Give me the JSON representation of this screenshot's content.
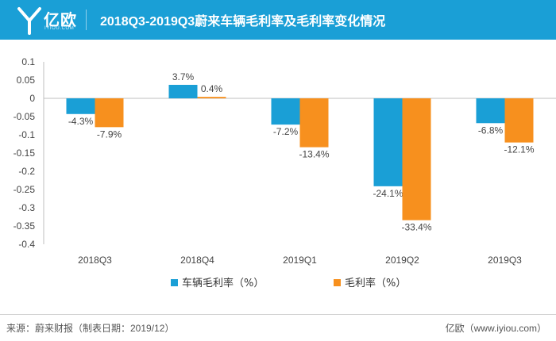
{
  "header": {
    "logo_text": "亿欧",
    "logo_sub": "IYIOU.COM",
    "title": "2018Q3-2019Q3蔚来车辆毛利率及毛利率变化情况"
  },
  "colors": {
    "header_bg": "#1a9fd6",
    "series1": "#1a9fd6",
    "series2": "#f7901e"
  },
  "chart_data": {
    "type": "bar",
    "categories": [
      "2018Q3",
      "2018Q4",
      "2019Q1",
      "2019Q2",
      "2019Q3"
    ],
    "series": [
      {
        "name": "车辆毛利率（%）",
        "values": [
          -4.3,
          3.7,
          -7.2,
          -24.1,
          -6.8
        ],
        "labels": [
          "-4.3%",
          "3.7%",
          "-7.2%",
          "-24.1%",
          "-6.8%"
        ]
      },
      {
        "name": "毛利率（%）",
        "values": [
          -7.9,
          0.4,
          -13.4,
          -33.4,
          -12.1
        ],
        "labels": [
          "-7.9%",
          "0.4%",
          "-13.4%",
          "-33.4%",
          "-12.1%"
        ]
      }
    ],
    "y_ticks": [
      "0.1",
      "0.05",
      "0",
      "-0.05",
      "-0.1",
      "-0.15",
      "-0.2",
      "-0.25",
      "-0.3",
      "-0.35",
      "-0.4"
    ],
    "ylim": [
      -0.4,
      0.1
    ],
    "grid": false,
    "legend_position": "bottom"
  },
  "footer": {
    "source": "来源：蔚来财报（制表日期：2019/12）",
    "brand": "亿欧（www.iyiou.com）"
  }
}
